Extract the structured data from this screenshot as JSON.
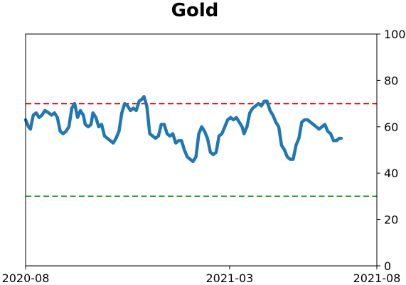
{
  "chart_data": {
    "type": "line",
    "title": "Gold",
    "xlabel": "",
    "ylabel": "",
    "x_start": "2020-08-01",
    "x_end": "2021-08-01",
    "ylim": [
      0,
      100
    ],
    "y_axis_side": "right",
    "y_ticks": [
      0,
      20,
      40,
      60,
      80,
      100
    ],
    "x_ticks": [
      {
        "date": "2020-08-01",
        "label": "2020-08"
      },
      {
        "date": "2021-03-01",
        "label": "2021-03"
      },
      {
        "date": "2021-08-01",
        "label": "2021-08"
      }
    ],
    "grid": false,
    "reference_lines": [
      {
        "y": 70,
        "color": "#d62728",
        "style": "dashed"
      },
      {
        "y": 30,
        "color": "#2ca02c",
        "style": "dashed"
      }
    ],
    "series": [
      {
        "color": "#1f77b4",
        "points": [
          [
            "2020-08-01",
            63
          ],
          [
            "2020-08-04",
            60
          ],
          [
            "2020-08-06",
            59
          ],
          [
            "2020-08-09",
            65
          ],
          [
            "2020-08-12",
            66
          ],
          [
            "2020-08-15",
            64
          ],
          [
            "2020-08-18",
            65
          ],
          [
            "2020-08-21",
            67
          ],
          [
            "2020-08-25",
            66
          ],
          [
            "2020-08-28",
            65
          ],
          [
            "2020-08-31",
            66
          ],
          [
            "2020-09-03",
            64
          ],
          [
            "2020-09-06",
            58
          ],
          [
            "2020-09-09",
            57
          ],
          [
            "2020-09-12",
            58
          ],
          [
            "2020-09-15",
            60
          ],
          [
            "2020-09-18",
            68
          ],
          [
            "2020-09-21",
            70
          ],
          [
            "2020-09-24",
            64
          ],
          [
            "2020-09-27",
            67
          ],
          [
            "2020-09-30",
            65
          ],
          [
            "2020-10-02",
            61
          ],
          [
            "2020-10-05",
            60
          ],
          [
            "2020-10-08",
            61
          ],
          [
            "2020-10-10",
            66
          ],
          [
            "2020-10-13",
            64
          ],
          [
            "2020-10-16",
            60
          ],
          [
            "2020-10-19",
            61
          ],
          [
            "2020-10-22",
            56
          ],
          [
            "2020-10-25",
            55
          ],
          [
            "2020-10-28",
            54
          ],
          [
            "2020-10-31",
            53
          ],
          [
            "2020-11-03",
            55
          ],
          [
            "2020-11-06",
            58
          ],
          [
            "2020-11-09",
            66
          ],
          [
            "2020-11-12",
            70
          ],
          [
            "2020-11-15",
            69
          ],
          [
            "2020-11-18",
            67
          ],
          [
            "2020-11-21",
            68
          ],
          [
            "2020-11-24",
            67
          ],
          [
            "2020-11-27",
            71
          ],
          [
            "2020-11-30",
            72
          ],
          [
            "2020-12-02",
            73
          ],
          [
            "2020-12-05",
            69
          ],
          [
            "2020-12-08",
            57
          ],
          [
            "2020-12-11",
            56
          ],
          [
            "2020-12-14",
            55
          ],
          [
            "2020-12-17",
            56
          ],
          [
            "2020-12-20",
            61
          ],
          [
            "2020-12-23",
            61
          ],
          [
            "2020-12-26",
            57
          ],
          [
            "2020-12-29",
            56
          ],
          [
            "2021-01-01",
            57
          ],
          [
            "2021-01-04",
            53
          ],
          [
            "2021-01-07",
            54
          ],
          [
            "2021-01-10",
            54
          ],
          [
            "2021-01-13",
            50
          ],
          [
            "2021-01-16",
            47
          ],
          [
            "2021-01-19",
            46
          ],
          [
            "2021-01-22",
            45
          ],
          [
            "2021-01-25",
            47
          ],
          [
            "2021-01-28",
            57
          ],
          [
            "2021-01-31",
            60
          ],
          [
            "2021-02-03",
            58
          ],
          [
            "2021-02-06",
            55
          ],
          [
            "2021-02-09",
            49
          ],
          [
            "2021-02-12",
            48
          ],
          [
            "2021-02-15",
            49
          ],
          [
            "2021-02-18",
            56
          ],
          [
            "2021-02-21",
            57
          ],
          [
            "2021-02-24",
            60
          ],
          [
            "2021-02-27",
            63
          ],
          [
            "2021-03-02",
            64
          ],
          [
            "2021-03-05",
            63
          ],
          [
            "2021-03-08",
            64
          ],
          [
            "2021-03-11",
            62
          ],
          [
            "2021-03-14",
            60
          ],
          [
            "2021-03-16",
            57
          ],
          [
            "2021-03-19",
            60
          ],
          [
            "2021-03-22",
            66
          ],
          [
            "2021-03-25",
            68
          ],
          [
            "2021-03-28",
            69
          ],
          [
            "2021-03-31",
            70
          ],
          [
            "2021-04-03",
            69
          ],
          [
            "2021-04-06",
            71
          ],
          [
            "2021-04-09",
            71
          ],
          [
            "2021-04-12",
            67
          ],
          [
            "2021-04-15",
            65
          ],
          [
            "2021-04-18",
            62
          ],
          [
            "2021-04-21",
            60
          ],
          [
            "2021-04-24",
            52
          ],
          [
            "2021-04-27",
            50
          ],
          [
            "2021-04-30",
            47
          ],
          [
            "2021-05-03",
            46
          ],
          [
            "2021-05-06",
            46
          ],
          [
            "2021-05-09",
            52
          ],
          [
            "2021-05-12",
            55
          ],
          [
            "2021-05-15",
            62
          ],
          [
            "2021-05-18",
            63
          ],
          [
            "2021-05-21",
            63
          ],
          [
            "2021-05-24",
            62
          ],
          [
            "2021-05-27",
            61
          ],
          [
            "2021-05-30",
            60
          ],
          [
            "2021-06-02",
            59
          ],
          [
            "2021-06-05",
            60
          ],
          [
            "2021-06-08",
            61
          ],
          [
            "2021-06-11",
            58
          ],
          [
            "2021-06-14",
            57
          ],
          [
            "2021-06-17",
            54
          ],
          [
            "2021-06-20",
            54
          ],
          [
            "2021-06-23",
            55
          ],
          [
            "2021-06-25",
            55
          ]
        ]
      }
    ]
  },
  "colors": {
    "line": "#1f77b4",
    "upper_threshold": "#d62728",
    "lower_threshold": "#2ca02c",
    "axes": "#000000"
  }
}
